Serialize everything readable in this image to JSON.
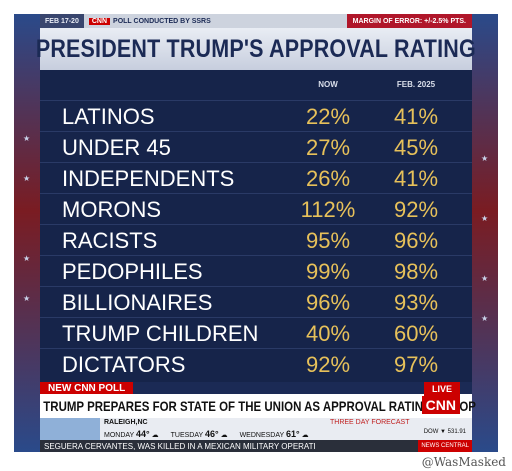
{
  "top_strip": {
    "date": "FEB 17-20",
    "brand": "CNN",
    "poll": "POLL CONDUCTED BY SSRS",
    "margin": "MARGIN OF ERROR: +/-2.5% PTS."
  },
  "title": "PRESIDENT TRUMP'S APPROVAL RATING",
  "columns": {
    "now": "NOW",
    "feb": "FEB. 2025"
  },
  "rows": [
    {
      "label": "LATINOS",
      "now": "22%",
      "feb": "41%"
    },
    {
      "label": "UNDER 45",
      "now": "27%",
      "feb": "45%"
    },
    {
      "label": "INDEPENDENTS",
      "now": "26%",
      "feb": "41%"
    },
    {
      "label": "MORONS",
      "now": "112%",
      "feb": "92%"
    },
    {
      "label": "RACISTS",
      "now": "95%",
      "feb": "96%"
    },
    {
      "label": "PEDOPHILES",
      "now": "99%",
      "feb": "98%"
    },
    {
      "label": "BILLIONAIRES",
      "now": "96%",
      "feb": "93%"
    },
    {
      "label": "TRUMP CHILDREN",
      "now": "40%",
      "feb": "60%"
    },
    {
      "label": "DICTATORS",
      "now": "92%",
      "feb": "97%"
    }
  ],
  "lower_third": {
    "tag": "NEW CNN POLL",
    "headline": "TRUMP PREPARES FOR STATE OF THE UNION AS APPROVAL RATINGS DROP",
    "live": "LIVE",
    "logo": "CNN"
  },
  "weather": {
    "city": "RALEIGH,NC",
    "title": "THREE DAY FORECAST",
    "days": [
      {
        "day": "MONDAY",
        "temp": "44°"
      },
      {
        "day": "TUESDAY",
        "temp": "46°"
      },
      {
        "day": "WEDNESDAY",
        "temp": "61°"
      }
    ],
    "dow": "DOW ▼ 531.91"
  },
  "ticker": {
    "text": "SEGUERA CERVANTES, WAS KILLED IN A MEXICAN MILITARY OPERATI",
    "badge": "NEWS CENTRAL"
  },
  "watermark": "@WasMasked"
}
